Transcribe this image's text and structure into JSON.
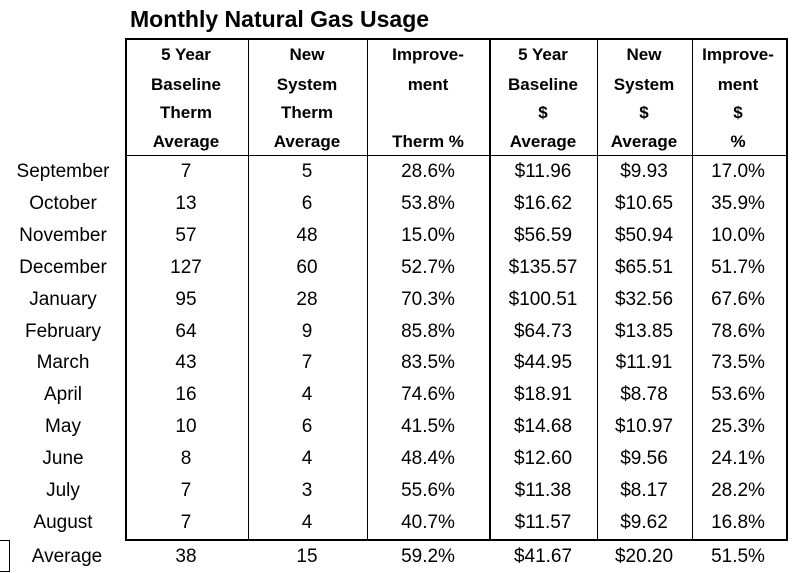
{
  "title": "Monthly Natural Gas Usage",
  "table": {
    "headers": [
      [
        "5 Year",
        "Baseline",
        "Therm",
        "Average"
      ],
      [
        "New",
        "System",
        "Therm",
        "Average"
      ],
      [
        "Improve-",
        "ment",
        "Therm %"
      ],
      [
        "5 Year",
        "Baseline",
        "$",
        "Average"
      ],
      [
        "New",
        "System",
        "$",
        "Average"
      ],
      [
        "Improve-",
        "ment",
        "$",
        "%"
      ]
    ],
    "rows": [
      {
        "label": "September",
        "cells": [
          "7",
          "5",
          "28.6%",
          "$11.96",
          "$9.93",
          "17.0%"
        ]
      },
      {
        "label": "October",
        "cells": [
          "13",
          "6",
          "53.8%",
          "$16.62",
          "$10.65",
          "35.9%"
        ]
      },
      {
        "label": "November",
        "cells": [
          "57",
          "48",
          "15.0%",
          "$56.59",
          "$50.94",
          "10.0%"
        ]
      },
      {
        "label": "December",
        "cells": [
          "127",
          "60",
          "52.7%",
          "$135.57",
          "$65.51",
          "51.7%"
        ]
      },
      {
        "label": "January",
        "cells": [
          "95",
          "28",
          "70.3%",
          "$100.51",
          "$32.56",
          "67.6%"
        ]
      },
      {
        "label": "February",
        "cells": [
          "64",
          "9",
          "85.8%",
          "$64.73",
          "$13.85",
          "78.6%"
        ]
      },
      {
        "label": "March",
        "cells": [
          "43",
          "7",
          "83.5%",
          "$44.95",
          "$11.91",
          "73.5%"
        ]
      },
      {
        "label": "April",
        "cells": [
          "16",
          "4",
          "74.6%",
          "$18.91",
          "$8.78",
          "53.6%"
        ]
      },
      {
        "label": "May",
        "cells": [
          "10",
          "6",
          "41.5%",
          "$14.68",
          "$10.97",
          "25.3%"
        ]
      },
      {
        "label": "June",
        "cells": [
          "8",
          "4",
          "48.4%",
          "$12.60",
          "$9.56",
          "24.1%"
        ]
      },
      {
        "label": "July",
        "cells": [
          "7",
          "3",
          "55.6%",
          "$11.38",
          "$8.17",
          "28.2%"
        ]
      },
      {
        "label": "August",
        "cells": [
          "7",
          "4",
          "40.7%",
          "$11.57",
          "$9.62",
          "16.8%"
        ]
      }
    ],
    "average": {
      "label": "Average",
      "cells": [
        "38",
        "15",
        "59.2%",
        "$41.67",
        "$20.20",
        "51.5%"
      ]
    }
  }
}
